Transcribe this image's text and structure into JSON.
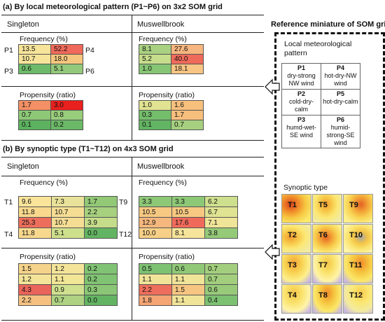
{
  "section_a": {
    "title": "(a) By local meteorological pattern (P1~P6) on 3x2 SOM grid",
    "singleton_label": "Singleton",
    "muswellbrook_label": "Muswellbrook",
    "frequency_label": "Frequency (%)",
    "propensity_label": "Propensity (ratio)",
    "row_labels": {
      "p1": "P1",
      "p3": "P3",
      "p4": "P4",
      "p6": "P6"
    },
    "singleton_freq": [
      [
        "13.5",
        "52.2"
      ],
      [
        "10.7",
        "18.0"
      ],
      [
        "0.6",
        "5.1"
      ]
    ],
    "singleton_prop": [
      [
        "1.7",
        "3.0"
      ],
      [
        "0.7",
        "0.8"
      ],
      [
        "0.1",
        "0.2"
      ]
    ],
    "musw_freq": [
      [
        "8.1",
        "27.6"
      ],
      [
        "5.2",
        "40.0"
      ],
      [
        "1.0",
        "18.1"
      ]
    ],
    "musw_prop": [
      [
        "1.0",
        "1.6"
      ],
      [
        "0.3",
        "1.7"
      ],
      [
        "0.1",
        "0.7"
      ]
    ]
  },
  "section_b": {
    "title": "(b) By synoptic type (T1~T12) on 4x3 SOM grid",
    "singleton_label": "Singleton",
    "muswellbrook_label": "Muswellbrook",
    "frequency_label": "Frequency (%)",
    "propensity_label": "Propensity (ratio)",
    "row_labels": {
      "t1": "T1",
      "t4": "T4",
      "t9": "T9",
      "t12": "T12"
    },
    "singleton_freq": [
      [
        "9.6",
        "7.3",
        "1.7"
      ],
      [
        "11.8",
        "10.7",
        "2.2"
      ],
      [
        "25.3",
        "10.7",
        "3.9"
      ],
      [
        "11.8",
        "5.1",
        "0.0"
      ]
    ],
    "singleton_prop": [
      [
        "1.5",
        "1.2",
        "0.2"
      ],
      [
        "1.2",
        "1.1",
        "0.2"
      ],
      [
        "4.3",
        "0.9",
        "0.3"
      ],
      [
        "2.2",
        "0.7",
        "0.0"
      ]
    ],
    "musw_freq": [
      [
        "3.3",
        "3.3",
        "6.2"
      ],
      [
        "10.5",
        "10.5",
        "6.7"
      ],
      [
        "12.9",
        "17.6",
        "7.1"
      ],
      [
        "10.0",
        "8.1",
        "3.8"
      ]
    ],
    "musw_prop": [
      [
        "0.5",
        "0.6",
        "0.7"
      ],
      [
        "1.1",
        "1.1",
        "0.7"
      ],
      [
        "2.2",
        "1.5",
        "0.6"
      ],
      [
        "1.8",
        "1.1",
        "0.4"
      ]
    ]
  },
  "reference": {
    "title": "Reference miniature of SOM grid",
    "local_pattern_label": "Local meteorological pattern",
    "patterns": [
      [
        {
          "id": "P1",
          "desc": "dry-strong NW wind"
        },
        {
          "id": "P4",
          "desc": "hot-dry-NW wind"
        }
      ],
      [
        {
          "id": "P2",
          "desc": "cold-dry-calm"
        },
        {
          "id": "P5",
          "desc": "hot-dry-calm"
        }
      ],
      [
        {
          "id": "P3",
          "desc": "humd-wet-SE wind"
        },
        {
          "id": "P6",
          "desc": "humid-strong-SE wind"
        }
      ]
    ],
    "synoptic_label": "Synoptic type",
    "types": [
      [
        "T1",
        "T5",
        "T9"
      ],
      [
        "T2",
        "T6",
        "T10"
      ],
      [
        "T3",
        "T7",
        "T11"
      ],
      [
        "T4",
        "T8",
        "T12"
      ]
    ]
  },
  "colors": {
    "freq_a_s": [
      [
        "#f6e49a",
        "#ef6a5a"
      ],
      [
        "#f6e49a",
        "#f5c77e"
      ],
      [
        "#6dbb6a",
        "#93c97a"
      ]
    ],
    "prop_a_s": [
      [
        "#f39065",
        "#e8201e"
      ],
      [
        "#8dc877",
        "#98cd7b"
      ],
      [
        "#5cb25e",
        "#6bb867"
      ]
    ],
    "freq_a_m": [
      [
        "#a9d181",
        "#f7b67f"
      ],
      [
        "#c6dd8b",
        "#ef6a5a"
      ],
      [
        "#86c574",
        "#f8c584"
      ]
    ],
    "prop_a_m": [
      [
        "#e2e392",
        "#f7c07d"
      ],
      [
        "#74bd6b",
        "#f7bf7c"
      ],
      [
        "#62b562",
        "#a6d07f"
      ]
    ],
    "freq_b_s": [
      [
        "#fae49a",
        "#e9e29a",
        "#92c876"
      ],
      [
        "#f8d88d",
        "#f5dd94",
        "#a7d07f"
      ],
      [
        "#ec6d5c",
        "#f5dd94",
        "#c5dc8a"
      ],
      [
        "#f8d88d",
        "#cfe08d",
        "#63b462"
      ]
    ],
    "prop_b_s": [
      [
        "#f5d38a",
        "#f4e49a",
        "#81c374"
      ],
      [
        "#f4e49a",
        "#f2e697",
        "#80c373"
      ],
      [
        "#e9645a",
        "#cfe08f",
        "#8ac675"
      ],
      [
        "#f4c181",
        "#aed282",
        "#63b462"
      ]
    ],
    "freq_b_m": [
      [
        "#8dc877",
        "#8dc877",
        "#cee08d"
      ],
      [
        "#f6c881",
        "#f6c881",
        "#dfe392"
      ],
      [
        "#f5b77d",
        "#ef6a5a",
        "#efe497"
      ],
      [
        "#f7cf86",
        "#f6e49a",
        "#95ca78"
      ]
    ],
    "prop_b_m": [
      [
        "#7dc172",
        "#90c877",
        "#a2ce7d"
      ],
      [
        "#f0e499",
        "#f0e499",
        "#a2ce7d"
      ],
      [
        "#ed6e5c",
        "#f5c581",
        "#98ca7a"
      ],
      [
        "#f3a574",
        "#f0e499",
        "#7cc072"
      ]
    ]
  }
}
